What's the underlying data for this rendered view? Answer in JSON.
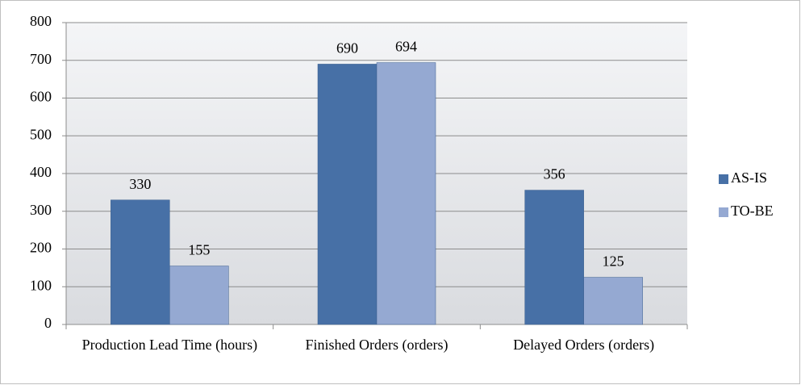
{
  "chart_data": {
    "type": "bar",
    "categories": [
      "Production Lead Time (hours)",
      "Finished Orders (orders)",
      "Delayed Orders (orders)"
    ],
    "series": [
      {
        "name": "AS-IS",
        "color": "#4770a6",
        "values": [
          330,
          690,
          356
        ]
      },
      {
        "name": "TO-BE",
        "color": "#95a9d2",
        "values": [
          155,
          694,
          125
        ]
      }
    ],
    "ylim": [
      0,
      800
    ],
    "yticks": [
      0,
      100,
      200,
      300,
      400,
      500,
      600,
      700,
      800
    ],
    "grid": true,
    "legend": "right"
  }
}
